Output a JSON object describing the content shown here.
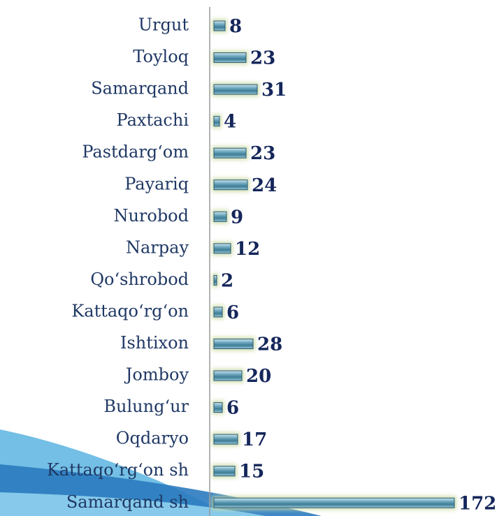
{
  "chart_data": {
    "type": "bar",
    "orientation": "horizontal",
    "categories": [
      "Urgut",
      "Toyloq",
      "Samarqand",
      "Paxtachi",
      "Pastdarg‘om",
      "Payariq",
      "Nurobod",
      "Narpay",
      "Qo‘shrobod",
      "Kattaqo‘rg‘on",
      "Ishtixon",
      "Jomboy",
      "Bulung‘ur",
      "Oqdaryo",
      "Kattaqo‘rg‘on sh",
      "Samarqand sh"
    ],
    "values": [
      8,
      23,
      31,
      4,
      23,
      24,
      9,
      12,
      2,
      6,
      28,
      20,
      6,
      17,
      15,
      172
    ],
    "color": "#5b9bb5"
  }
}
